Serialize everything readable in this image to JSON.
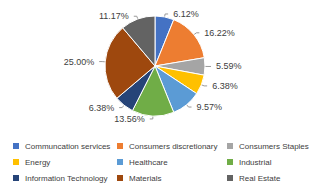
{
  "chart_data": {
    "type": "pie",
    "categories": [
      "Communcation services",
      "Consumers discretionary",
      "Consumers Staples",
      "Energy",
      "Healthcare",
      "Industrial",
      "Information Technology",
      "Materials",
      "Real Estate"
    ],
    "values": [
      6.12,
      16.22,
      5.59,
      6.38,
      9.57,
      13.56,
      6.38,
      25.0,
      11.17
    ],
    "value_labels": [
      "6.12%",
      "16.22%",
      "5.59%",
      "6.38%",
      "9.57%",
      "13.56%",
      "6.38%",
      "25.00%",
      "11.17%"
    ],
    "colors": [
      "#4472c4",
      "#ed7d31",
      "#a5a5a5",
      "#ffc000",
      "#5b9bd5",
      "#70ad47",
      "#264478",
      "#9e480e",
      "#636363"
    ],
    "data_labels": true,
    "legend": "bottom"
  }
}
